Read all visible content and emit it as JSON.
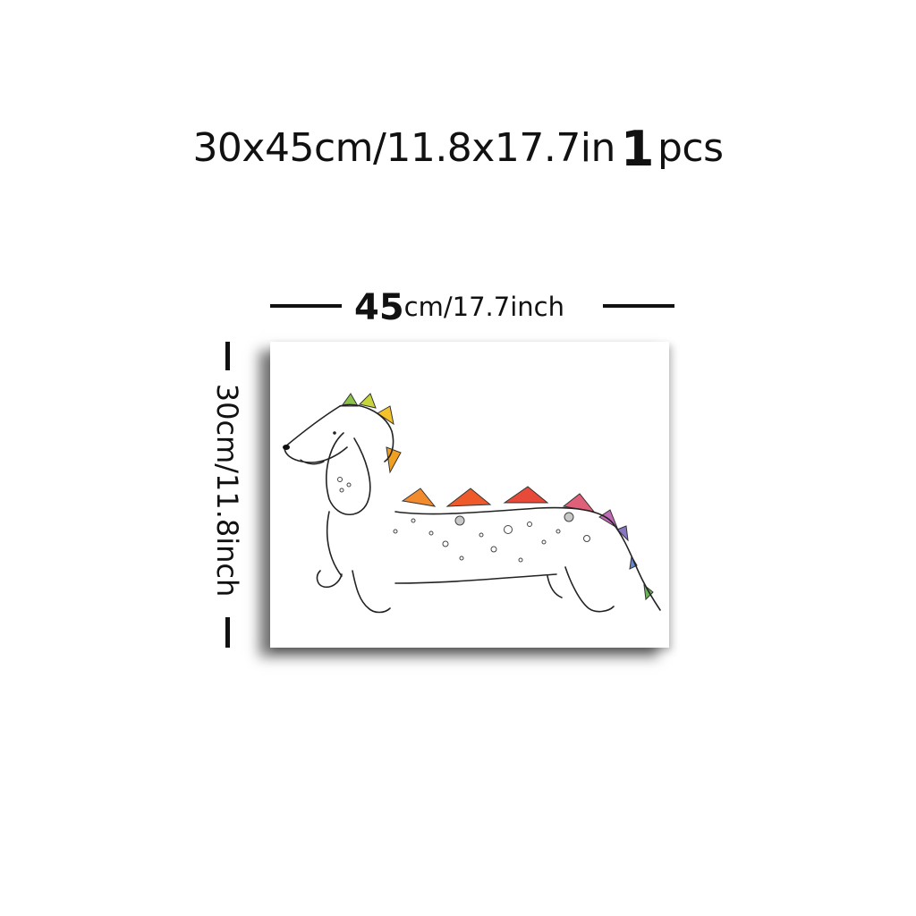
{
  "headline": {
    "size_text": "30x45cm/11.8x17.7in",
    "quantity": "1",
    "unit": "pcs"
  },
  "width_dimension": {
    "value": "45",
    "unit_text": "cm/17.7inch"
  },
  "height_dimension": {
    "text": "30cm/11.8inch"
  },
  "artwork": {
    "subject": "dachshund-dinosaur-drawing",
    "spike_colors": [
      "#8bc34a",
      "#c6d63a",
      "#f5c22b",
      "#f0a020",
      "#f28a2e",
      "#ee5a2a",
      "#e84a3a",
      "#e0607a",
      "#c06ab8",
      "#8a74c4",
      "#6a86d0",
      "#6bb35a"
    ]
  },
  "colors": {
    "ink": "#111111",
    "background": "#ffffff"
  }
}
